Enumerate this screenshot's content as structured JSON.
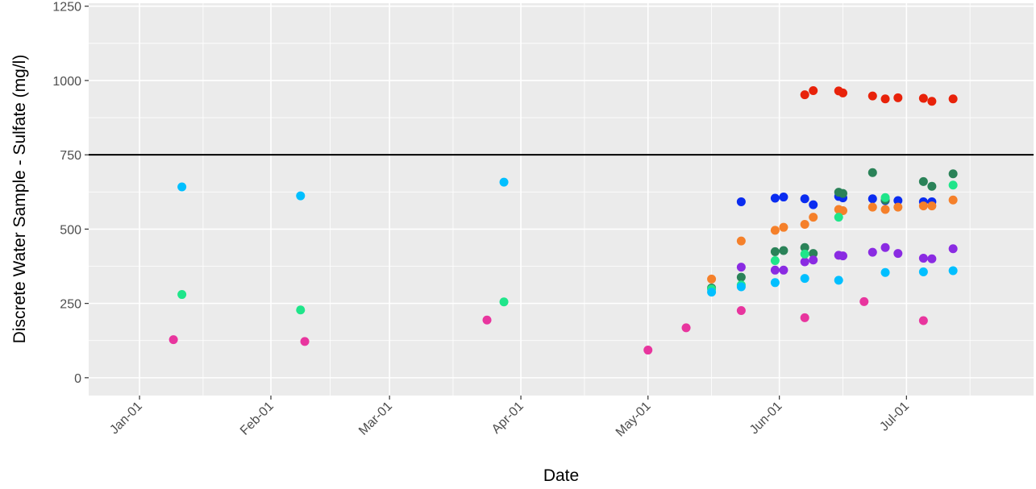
{
  "chart_data": {
    "type": "scatter",
    "xlabel": "Date",
    "ylabel": "Discrete Water Sample - Sulfate (mg/l)",
    "x_ticks": [
      "Jan-01",
      "Feb-01",
      "Mar-01",
      "Apr-01",
      "May-01",
      "Jun-01",
      "Jul-01"
    ],
    "y_ticks": [
      0,
      250,
      500,
      750,
      1000,
      1250
    ],
    "xlim": [
      "2021-12-20",
      "2022-07-31"
    ],
    "ylim": [
      -60,
      1260
    ],
    "grid": true,
    "reference_line": {
      "y": 750,
      "color": "#000000"
    },
    "background": "#ebebeb",
    "series": [
      {
        "color": "#e8220a",
        "points": [
          [
            "2022-06-07",
            952
          ],
          [
            "2022-06-09",
            966
          ],
          [
            "2022-06-15",
            965
          ],
          [
            "2022-06-16",
            958
          ],
          [
            "2022-06-23",
            948
          ],
          [
            "2022-06-26",
            938
          ],
          [
            "2022-06-29",
            942
          ],
          [
            "2022-07-05",
            940
          ],
          [
            "2022-07-07",
            930
          ],
          [
            "2022-07-12",
            938
          ]
        ]
      },
      {
        "color": "#0a2cf0",
        "points": [
          [
            "2022-05-23",
            592
          ],
          [
            "2022-05-31",
            604
          ],
          [
            "2022-06-02",
            608
          ],
          [
            "2022-06-07",
            602
          ],
          [
            "2022-06-09",
            582
          ],
          [
            "2022-06-15",
            610
          ],
          [
            "2022-06-16",
            605
          ],
          [
            "2022-06-23",
            602
          ],
          [
            "2022-06-26",
            596
          ],
          [
            "2022-06-29",
            596
          ],
          [
            "2022-07-05",
            592
          ],
          [
            "2022-07-07",
            592
          ]
        ]
      },
      {
        "color": "#2a8258",
        "points": [
          [
            "2022-05-16",
            302
          ],
          [
            "2022-05-23",
            338
          ],
          [
            "2022-05-31",
            424
          ],
          [
            "2022-06-02",
            428
          ],
          [
            "2022-06-07",
            438
          ],
          [
            "2022-06-09",
            418
          ],
          [
            "2022-06-15",
            624
          ],
          [
            "2022-06-16",
            620
          ],
          [
            "2022-06-23",
            690
          ],
          [
            "2022-06-26",
            598
          ],
          [
            "2022-07-05",
            660
          ],
          [
            "2022-07-07",
            644
          ],
          [
            "2022-07-12",
            686
          ]
        ]
      },
      {
        "color": "#f5802a",
        "points": [
          [
            "2022-05-16",
            332
          ],
          [
            "2022-05-23",
            460
          ],
          [
            "2022-05-31",
            496
          ],
          [
            "2022-06-02",
            506
          ],
          [
            "2022-06-07",
            516
          ],
          [
            "2022-06-09",
            540
          ],
          [
            "2022-06-15",
            566
          ],
          [
            "2022-06-16",
            562
          ],
          [
            "2022-06-23",
            574
          ],
          [
            "2022-06-26",
            566
          ],
          [
            "2022-06-29",
            574
          ],
          [
            "2022-07-05",
            578
          ],
          [
            "2022-07-07",
            578
          ],
          [
            "2022-07-12",
            598
          ]
        ]
      },
      {
        "color": "#8a2be2",
        "points": [
          [
            "2022-05-23",
            372
          ],
          [
            "2022-05-31",
            362
          ],
          [
            "2022-06-02",
            362
          ],
          [
            "2022-06-07",
            390
          ],
          [
            "2022-06-09",
            396
          ],
          [
            "2022-06-15",
            412
          ],
          [
            "2022-06-16",
            410
          ],
          [
            "2022-06-23",
            422
          ],
          [
            "2022-06-26",
            438
          ],
          [
            "2022-06-29",
            418
          ],
          [
            "2022-07-05",
            402
          ],
          [
            "2022-07-07",
            400
          ],
          [
            "2022-07-12",
            434
          ]
        ]
      },
      {
        "color": "#1fe58a",
        "points": [
          [
            "2022-01-11",
            280
          ],
          [
            "2022-02-08",
            228
          ],
          [
            "2022-03-28",
            255
          ],
          [
            "2022-05-16",
            298
          ],
          [
            "2022-05-23",
            312
          ],
          [
            "2022-05-31",
            394
          ],
          [
            "2022-06-07",
            416
          ],
          [
            "2022-06-15",
            540
          ],
          [
            "2022-06-26",
            606
          ],
          [
            "2022-07-12",
            648
          ]
        ]
      },
      {
        "color": "#00bfff",
        "points": [
          [
            "2022-01-11",
            642
          ],
          [
            "2022-02-08",
            612
          ],
          [
            "2022-03-28",
            658
          ],
          [
            "2022-05-16",
            288
          ],
          [
            "2022-05-23",
            306
          ],
          [
            "2022-05-31",
            320
          ],
          [
            "2022-06-07",
            334
          ],
          [
            "2022-06-15",
            328
          ],
          [
            "2022-06-26",
            354
          ],
          [
            "2022-07-05",
            356
          ],
          [
            "2022-07-12",
            360
          ]
        ]
      },
      {
        "color": "#e8359e",
        "points": [
          [
            "2022-01-09",
            128
          ],
          [
            "2022-02-09",
            122
          ],
          [
            "2022-03-24",
            194
          ],
          [
            "2022-05-01",
            93
          ],
          [
            "2022-05-10",
            168
          ],
          [
            "2022-05-23",
            226
          ],
          [
            "2022-06-07",
            202
          ],
          [
            "2022-06-21",
            256
          ],
          [
            "2022-07-05",
            192
          ]
        ]
      }
    ]
  }
}
